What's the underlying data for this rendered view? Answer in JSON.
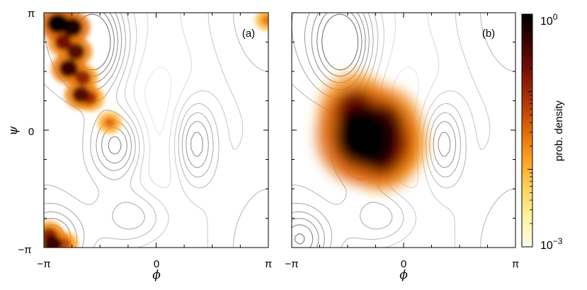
{
  "chart_data": [
    {
      "type": "heatmap",
      "panel_label": "(a)",
      "x_tick_labels": [
        "−π",
        "0",
        "π"
      ],
      "y_tick_labels": [
        "π",
        "0",
        "−π"
      ],
      "xlabel": "ϕ",
      "ylabel": "ψ",
      "xlim": [
        -3.1416,
        3.1416
      ],
      "ylim": [
        -3.1416,
        3.1416
      ],
      "density_regions": [
        {
          "phi": -2.75,
          "psi": 2.85,
          "density": 1.0
        },
        {
          "phi": -2.35,
          "psi": 2.75,
          "density": 0.9
        },
        {
          "phi": -2.6,
          "psi": 2.35,
          "density": 0.6
        },
        {
          "phi": -2.25,
          "psi": 2.1,
          "density": 0.7
        },
        {
          "phi": -2.45,
          "psi": 1.65,
          "density": 0.8
        },
        {
          "phi": -2.05,
          "psi": 1.4,
          "density": 0.5
        },
        {
          "phi": -2.1,
          "psi": 0.95,
          "density": 0.7
        },
        {
          "phi": -1.85,
          "psi": 0.85,
          "density": 0.4
        },
        {
          "phi": -1.3,
          "psi": 0.2,
          "density": 0.15
        },
        {
          "phi": -3.0,
          "psi": -2.8,
          "density": 0.5
        },
        {
          "phi": -2.9,
          "psi": -3.05,
          "density": 0.8
        },
        {
          "phi": -2.55,
          "psi": -3.05,
          "density": 0.3
        },
        {
          "phi": 3.1,
          "psi": 2.95,
          "density": 0.1
        }
      ]
    },
    {
      "type": "heatmap",
      "panel_label": "(b)",
      "x_tick_labels": [
        "−π",
        "0",
        "π"
      ],
      "y_tick_labels": [],
      "xlabel": "ϕ",
      "ylabel": "",
      "xlim": [
        -3.1416,
        3.1416
      ],
      "ylim": [
        -3.1416,
        3.1416
      ],
      "density_regions": [
        {
          "phi": -1.2,
          "psi": -0.15,
          "density": 1.0
        },
        {
          "phi": -0.85,
          "psi": -0.3,
          "density": 0.9
        },
        {
          "phi": -0.6,
          "psi": 0.05,
          "density": 0.7
        },
        {
          "phi": -0.6,
          "psi": -0.55,
          "density": 0.6
        },
        {
          "phi": -1.35,
          "psi": 0.45,
          "density": 0.6
        },
        {
          "phi": -0.3,
          "psi": -0.35,
          "density": 0.4
        }
      ]
    }
  ],
  "colorbar": {
    "label": "prob. density",
    "top_label": "10",
    "top_exp": "0",
    "bottom_label": "10",
    "bottom_exp": "−3",
    "range": [
      0.001,
      1
    ],
    "scale": "log",
    "colors": [
      "#fffde8",
      "#fff3a0",
      "#ffd35c",
      "#ffa11f",
      "#e06808",
      "#b03606",
      "#7a1206",
      "#3c0402",
      "#000000"
    ]
  }
}
